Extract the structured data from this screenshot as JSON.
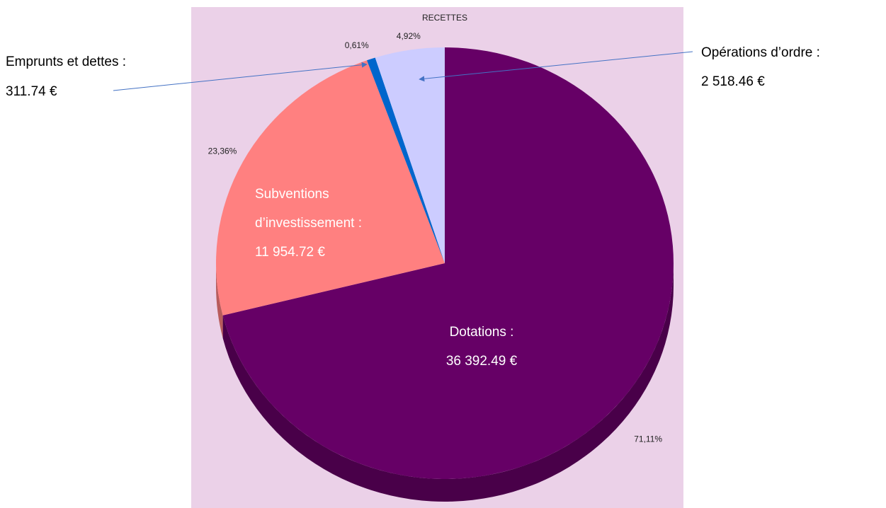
{
  "chart_data": {
    "type": "pie",
    "title": "RECETTES",
    "categories": [
      "Dotations",
      "Subventions d'investissement",
      "Emprunts et dettes",
      "Opérations d'ordre"
    ],
    "values": [
      71.11,
      23.36,
      0.61,
      4.92
    ],
    "value_labels": [
      "71,11%",
      "23,36%",
      "0,61%",
      "4,92%"
    ],
    "colors": [
      "#660066",
      "#ff8080",
      "#0066cc",
      "#ccccff"
    ],
    "annotations": [
      {
        "lines": [
          "Dotations :",
          "36 392.49 €"
        ]
      },
      {
        "lines": [
          "Subventions",
          "d’investissement :",
          "11 954.72 €"
        ]
      },
      {
        "lines": [
          "Emprunts et dettes :",
          "311.74 €"
        ]
      },
      {
        "lines": [
          "Opérations d’ordre :",
          "2 518.46 €"
        ]
      }
    ]
  }
}
